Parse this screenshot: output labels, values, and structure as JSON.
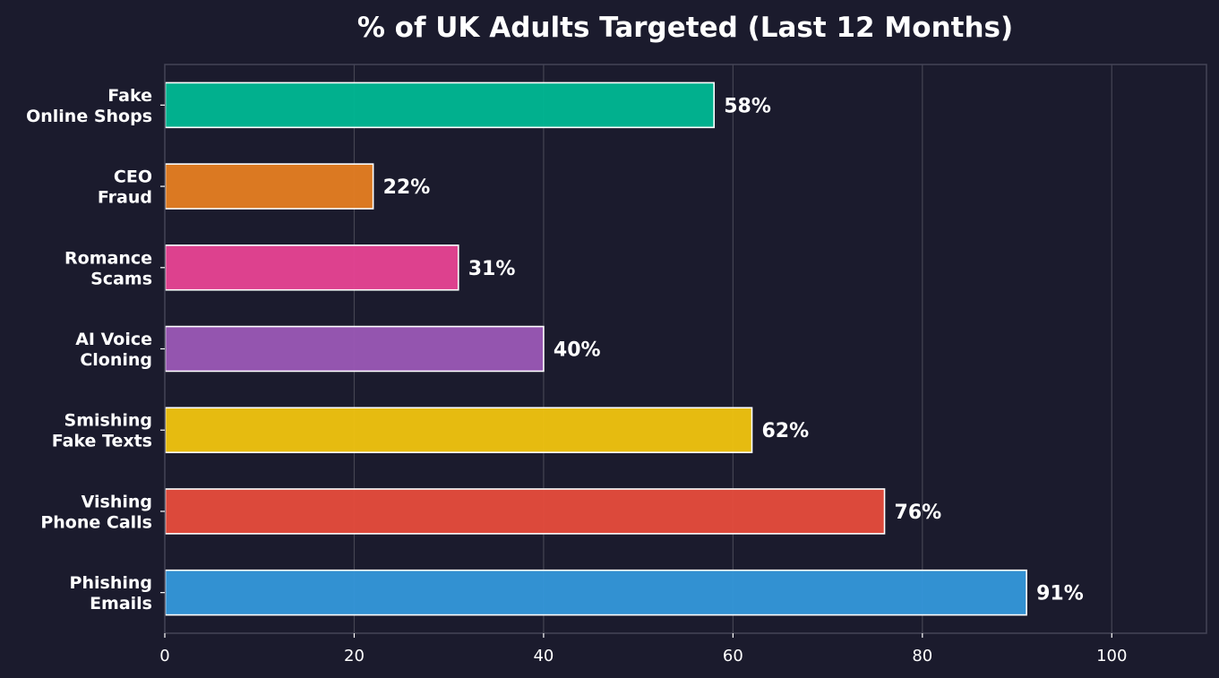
{
  "chart_data": {
    "type": "bar",
    "orientation": "horizontal",
    "title": "% of UK Adults Targeted (Last 12 Months)",
    "xlabel": "",
    "ylabel": "",
    "xlim": [
      0,
      110
    ],
    "xticks": [
      0,
      20,
      40,
      60,
      80,
      100
    ],
    "grid": "vertical",
    "categories": [
      [
        "Phishing",
        "Emails"
      ],
      [
        "Vishing",
        "Phone Calls"
      ],
      [
        "Smishing",
        "Fake Texts"
      ],
      [
        "AI Voice",
        "Cloning"
      ],
      [
        "Romance",
        "Scams"
      ],
      [
        "CEO",
        "Fraud"
      ],
      [
        "Fake",
        "Online Shops"
      ]
    ],
    "values": [
      91,
      76,
      62,
      40,
      31,
      22,
      58
    ],
    "value_labels": [
      "91%",
      "76%",
      "62%",
      "40%",
      "31%",
      "22%",
      "58%"
    ],
    "colors": [
      "#3498db",
      "#e74c3c",
      "#f1c40f",
      "#9b59b6",
      "#e84393",
      "#e67e22",
      "#00b894"
    ],
    "background": "#1b1b2d"
  }
}
